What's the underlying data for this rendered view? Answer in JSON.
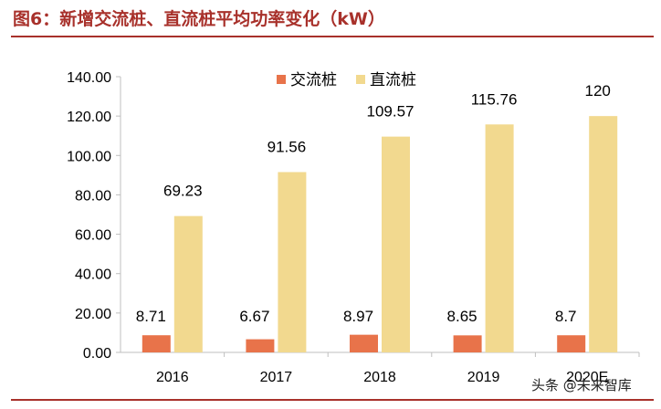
{
  "title": "图6：新增交流桩、直流桩平均功率变化（kW）",
  "watermark": "头条 @未来智库",
  "chart_data": {
    "type": "bar",
    "categories": [
      "2016",
      "2017",
      "2018",
      "2019",
      "2020E"
    ],
    "series": [
      {
        "name": "交流桩",
        "values": [
          8.71,
          6.67,
          8.97,
          8.65,
          8.7
        ],
        "labels": [
          "8.71",
          "6.67",
          "8.97",
          "8.65",
          "8.7"
        ],
        "color": "#e8734a"
      },
      {
        "name": "直流桩",
        "values": [
          69.23,
          91.56,
          109.57,
          115.76,
          120
        ],
        "labels": [
          "69.23",
          "91.56",
          "109.57",
          "115.76",
          "120"
        ],
        "color": "#f2d98f"
      }
    ],
    "ylim": [
      0,
      140
    ],
    "yticks": [
      "0.00",
      "20.00",
      "40.00",
      "60.00",
      "80.00",
      "100.00",
      "120.00",
      "140.00"
    ],
    "grid": false,
    "legend_position": "top-center"
  }
}
